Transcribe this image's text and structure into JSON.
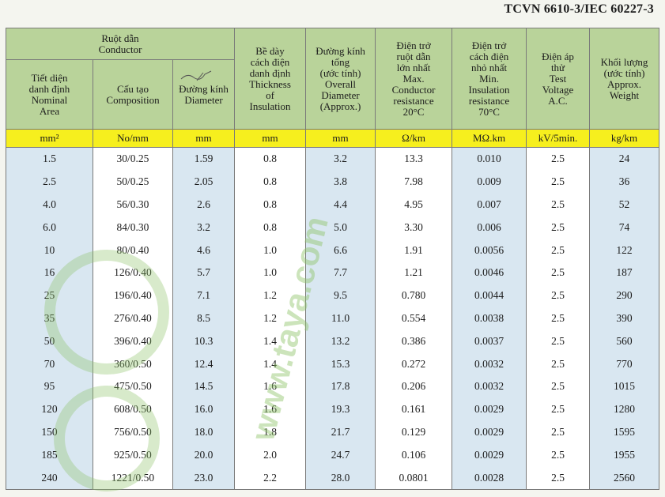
{
  "standard": "TCVN 6610-3/IEC 60227-3",
  "headers": {
    "conductor": [
      "Ruột dẫn",
      "Conductor"
    ],
    "area": [
      "Tiết diện",
      "danh định",
      "Nominal",
      "Area"
    ],
    "composition": [
      "Cấu tạo",
      "Composition"
    ],
    "diameter": [
      "Đường kính",
      "Diameter"
    ],
    "insulation": [
      "Bề dày",
      "cách điện",
      "danh định",
      "Thickness",
      "of",
      "Insulation"
    ],
    "overall": [
      "Đường kính",
      "tổng",
      "(ước tính)",
      "Overall",
      "Diameter",
      "(Approx.)"
    ],
    "max_res": [
      "Điện trở",
      "ruột dẫn",
      "lớn nhất",
      "Max.",
      "Conductor",
      "resistance",
      "20°C"
    ],
    "min_res": [
      "Điện trở",
      "cách điện",
      "nhỏ nhất",
      "Min.",
      "Insulation",
      "resistance",
      "70°C"
    ],
    "voltage": [
      "Điện áp",
      "thử",
      "Test",
      "Voltage",
      "A.C."
    ],
    "weight": [
      "Khối lượng",
      "(ước tính)",
      "Approx.",
      "Weight"
    ]
  },
  "units": [
    "mm²",
    "No/mm",
    "mm",
    "mm",
    "mm",
    "Ω/km",
    "MΩ.km",
    "kV/5min.",
    "kg/km"
  ],
  "rows": [
    [
      "1.5",
      "30/0.25",
      "1.59",
      "0.8",
      "3.2",
      "13.3",
      "0.010",
      "2.5",
      "24"
    ],
    [
      "2.5",
      "50/0.25",
      "2.05",
      "0.8",
      "3.8",
      "7.98",
      "0.009",
      "2.5",
      "36"
    ],
    [
      "4.0",
      "56/0.30",
      "2.6",
      "0.8",
      "4.4",
      "4.95",
      "0.007",
      "2.5",
      "52"
    ],
    [
      "6.0",
      "84/0.30",
      "3.2",
      "0.8",
      "5.0",
      "3.30",
      "0.006",
      "2.5",
      "74"
    ],
    [
      "10",
      "80/0.40",
      "4.6",
      "1.0",
      "6.6",
      "1.91",
      "0.0056",
      "2.5",
      "122"
    ],
    [
      "16",
      "126/0.40",
      "5.7",
      "1.0",
      "7.7",
      "1.21",
      "0.0046",
      "2.5",
      "187"
    ],
    [
      "25",
      "196/0.40",
      "7.1",
      "1.2",
      "9.5",
      "0.780",
      "0.0044",
      "2.5",
      "290"
    ],
    [
      "35",
      "276/0.40",
      "8.5",
      "1.2",
      "11.0",
      "0.554",
      "0.0038",
      "2.5",
      "390"
    ],
    [
      "50",
      "396/0.40",
      "10.3",
      "1.4",
      "13.2",
      "0.386",
      "0.0037",
      "2.5",
      "560"
    ],
    [
      "70",
      "360/0.50",
      "12.4",
      "1.4",
      "15.3",
      "0.272",
      "0.0032",
      "2.5",
      "770"
    ],
    [
      "95",
      "475/0.50",
      "14.5",
      "1.6",
      "17.8",
      "0.206",
      "0.0032",
      "2.5",
      "1015"
    ],
    [
      "120",
      "608/0.50",
      "16.0",
      "1.6",
      "19.3",
      "0.161",
      "0.0029",
      "2.5",
      "1280"
    ],
    [
      "150",
      "756/0.50",
      "18.0",
      "1.8",
      "21.7",
      "0.129",
      "0.0029",
      "2.5",
      "1595"
    ],
    [
      "185",
      "925/0.50",
      "20.0",
      "2.0",
      "24.7",
      "0.106",
      "0.0029",
      "2.5",
      "1955"
    ],
    [
      "240",
      "1221/0.50",
      "23.0",
      "2.2",
      "28.0",
      "0.0801",
      "0.0028",
      "2.5",
      "2560"
    ]
  ],
  "group_starts": [
    0,
    5,
    10
  ],
  "watermark_text": "www.taya.com",
  "colors": {
    "header_bg": "#b9d39a",
    "unit_bg": "#f6ef1e",
    "stripe_bg": "#d9e7f1",
    "watermark": "#8fc46a"
  }
}
